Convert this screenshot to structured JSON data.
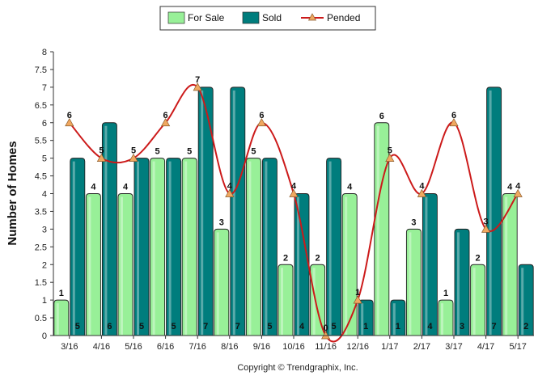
{
  "chart_data": {
    "type": "bar",
    "title": "",
    "xlabel": "",
    "ylabel": "Number of Homes",
    "ylim": [
      0,
      8
    ],
    "ytick_step": 0.5,
    "grid": false,
    "legend_position": "top-center",
    "copyright": "Copyright © Trendgraphix, Inc.",
    "categories": [
      "3/16",
      "4/16",
      "5/16",
      "6/16",
      "7/16",
      "8/16",
      "9/16",
      "10/16",
      "11/16",
      "12/16",
      "1/17",
      "2/17",
      "3/17",
      "4/17",
      "5/17"
    ],
    "series": [
      {
        "name": "For Sale",
        "type": "bar",
        "color": "#98f098",
        "values": [
          1,
          4,
          4,
          5,
          5,
          3,
          5,
          2,
          2,
          4,
          6,
          3,
          1,
          2,
          4
        ]
      },
      {
        "name": "Sold",
        "type": "bar",
        "color": "#007d7d",
        "values": [
          5,
          6,
          5,
          5,
          7,
          7,
          5,
          4,
          5,
          1,
          1,
          4,
          3,
          7,
          2
        ]
      },
      {
        "name": "Pended",
        "type": "line",
        "color": "#cc1a1a",
        "marker_color": "#f0a860",
        "values": [
          6,
          5,
          5,
          6,
          7,
          4,
          6,
          4,
          0,
          1,
          5,
          4,
          6,
          3,
          4
        ]
      }
    ]
  }
}
